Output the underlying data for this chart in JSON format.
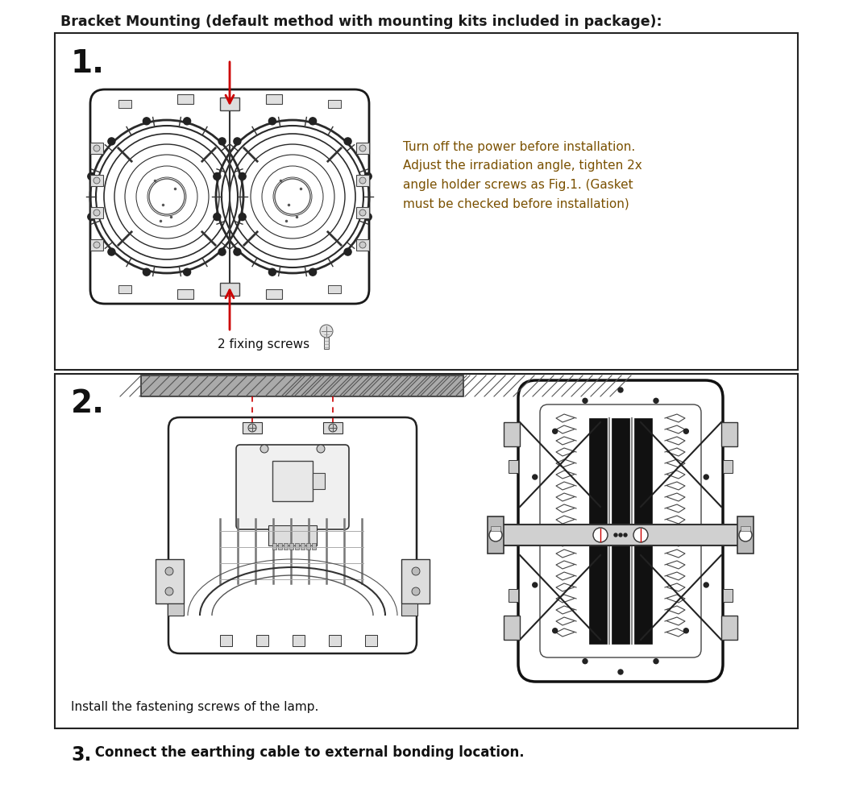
{
  "title": "Bracket Mounting (default method with mounting kits included in package):",
  "title_fontsize": 12.5,
  "title_color": "#1a1a1a",
  "bg_color": "#ffffff",
  "box_color": "#333333",
  "step1_number": "1.",
  "step1_number_fontsize": 28,
  "step1_text": "Turn off the power before installation.\nAdjust the irradiation angle, tighten 2x\nangle holder screws as Fig.1. (Gasket\nmust be checked before installation)",
  "step1_text_color": "#7a5000",
  "step1_text_fontsize": 11,
  "step1_label": "2 fixing screws",
  "step1_label_fontsize": 11,
  "step2_number": "2.",
  "step2_number_fontsize": 28,
  "step2_text": "Install the fastening screws of the lamp.",
  "step2_text_fontsize": 11,
  "step3_number": "3.",
  "step3_number_fontsize": 17,
  "step3_text": " Connect the earthing cable to external bonding location.",
  "step3_text_fontsize": 12,
  "arrow_color": "#cc0000",
  "figure_width": 10.51,
  "figure_height": 9.79,
  "dpi": 100
}
